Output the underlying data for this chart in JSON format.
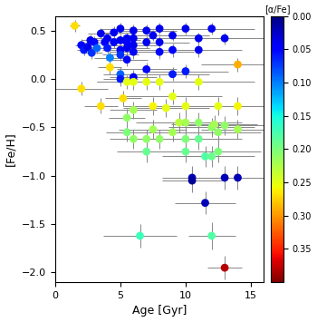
{
  "xlabel": "Age [Gyr]",
  "ylabel": "[Fe/H]",
  "colorbar_label": "[α/Fe]",
  "xlim": [
    0,
    16
  ],
  "ylim": [
    -2.1,
    0.65
  ],
  "cmap": "jet",
  "vmin": 0.0,
  "vmax": 0.4,
  "points": [
    {
      "age": 1.5,
      "feh": 0.55,
      "alpha": 0.27,
      "age_err": 0.4,
      "feh_err": 0.06
    },
    {
      "age": 2.0,
      "feh": 0.35,
      "alpha": 0.05,
      "age_err": 0.5,
      "feh_err": 0.06
    },
    {
      "age": 2.2,
      "feh": 0.3,
      "alpha": 0.06,
      "age_err": 0.5,
      "feh_err": 0.06
    },
    {
      "age": 2.5,
      "feh": 0.33,
      "alpha": 0.04,
      "age_err": 0.6,
      "feh_err": 0.06
    },
    {
      "age": 2.7,
      "feh": 0.4,
      "alpha": 0.04,
      "age_err": 0.7,
      "feh_err": 0.06
    },
    {
      "age": 2.8,
      "feh": 0.27,
      "alpha": 0.07,
      "age_err": 0.8,
      "feh_err": 0.06
    },
    {
      "age": 2.0,
      "feh": -0.1,
      "alpha": 0.27,
      "age_err": 2.0,
      "feh_err": 0.07
    },
    {
      "age": 3.0,
      "feh": 0.38,
      "alpha": 0.05,
      "age_err": 0.9,
      "feh_err": 0.06
    },
    {
      "age": 3.2,
      "feh": 0.32,
      "alpha": 0.09,
      "age_err": 1.0,
      "feh_err": 0.06
    },
    {
      "age": 3.5,
      "feh": 0.47,
      "alpha": 0.04,
      "age_err": 1.0,
      "feh_err": 0.06
    },
    {
      "age": 3.8,
      "feh": 0.38,
      "alpha": 0.05,
      "age_err": 1.0,
      "feh_err": 0.06
    },
    {
      "age": 4.0,
      "feh": 0.42,
      "alpha": 0.04,
      "age_err": 1.2,
      "feh_err": 0.06
    },
    {
      "age": 4.0,
      "feh": 0.32,
      "alpha": 0.06,
      "age_err": 1.1,
      "feh_err": 0.06
    },
    {
      "age": 4.2,
      "feh": 0.22,
      "alpha": 0.1,
      "age_err": 1.2,
      "feh_err": 0.07
    },
    {
      "age": 4.2,
      "feh": 0.12,
      "alpha": 0.27,
      "age_err": 0.9,
      "feh_err": 0.07
    },
    {
      "age": 3.5,
      "feh": -0.28,
      "alpha": 0.27,
      "age_err": 1.3,
      "feh_err": 0.08
    },
    {
      "age": 4.5,
      "feh": 0.48,
      "alpha": 0.04,
      "age_err": 1.3,
      "feh_err": 0.06
    },
    {
      "age": 4.5,
      "feh": 0.38,
      "alpha": 0.05,
      "age_err": 1.3,
      "feh_err": 0.06
    },
    {
      "age": 5.0,
      "feh": 0.52,
      "alpha": 0.04,
      "age_err": 1.5,
      "feh_err": 0.06
    },
    {
      "age": 5.0,
      "feh": 0.4,
      "alpha": 0.04,
      "age_err": 1.5,
      "feh_err": 0.06
    },
    {
      "age": 5.0,
      "feh": 0.3,
      "alpha": 0.05,
      "age_err": 1.4,
      "feh_err": 0.06
    },
    {
      "age": 5.0,
      "feh": 0.25,
      "alpha": 0.07,
      "age_err": 1.4,
      "feh_err": 0.06
    },
    {
      "age": 5.0,
      "feh": 0.05,
      "alpha": 0.09,
      "age_err": 1.3,
      "feh_err": 0.07
    },
    {
      "age": 5.0,
      "feh": 0.0,
      "alpha": 0.06,
      "age_err": 1.3,
      "feh_err": 0.07
    },
    {
      "age": 5.2,
      "feh": -0.2,
      "alpha": 0.27,
      "age_err": 1.4,
      "feh_err": 0.08
    },
    {
      "age": 5.5,
      "feh": 0.42,
      "alpha": 0.04,
      "age_err": 1.6,
      "feh_err": 0.06
    },
    {
      "age": 5.5,
      "feh": 0.38,
      "alpha": 0.05,
      "age_err": 1.6,
      "feh_err": 0.06
    },
    {
      "age": 5.5,
      "feh": 0.32,
      "alpha": 0.04,
      "age_err": 1.7,
      "feh_err": 0.06
    },
    {
      "age": 5.5,
      "feh": 0.2,
      "alpha": 0.05,
      "age_err": 1.6,
      "feh_err": 0.07
    },
    {
      "age": 5.5,
      "feh": -0.03,
      "alpha": 0.25,
      "age_err": 2.3,
      "feh_err": 0.07
    },
    {
      "age": 5.5,
      "feh": -0.4,
      "alpha": 0.21,
      "age_err": 1.4,
      "feh_err": 0.09
    },
    {
      "age": 5.5,
      "feh": -0.55,
      "alpha": 0.2,
      "age_err": 1.6,
      "feh_err": 0.1
    },
    {
      "age": 6.0,
      "feh": 0.5,
      "alpha": 0.04,
      "age_err": 1.8,
      "feh_err": 0.06
    },
    {
      "age": 6.0,
      "feh": 0.42,
      "alpha": 0.04,
      "age_err": 1.8,
      "feh_err": 0.06
    },
    {
      "age": 6.0,
      "feh": 0.35,
      "alpha": 0.04,
      "age_err": 1.8,
      "feh_err": 0.06
    },
    {
      "age": 6.0,
      "feh": 0.28,
      "alpha": 0.05,
      "age_err": 1.8,
      "feh_err": 0.07
    },
    {
      "age": 6.0,
      "feh": 0.02,
      "alpha": 0.04,
      "age_err": 1.8,
      "feh_err": 0.07
    },
    {
      "age": 6.0,
      "feh": -0.03,
      "alpha": 0.25,
      "age_err": 2.8,
      "feh_err": 0.08
    },
    {
      "age": 6.0,
      "feh": -0.32,
      "alpha": 0.22,
      "age_err": 1.8,
      "feh_err": 0.09
    },
    {
      "age": 6.0,
      "feh": -0.62,
      "alpha": 0.21,
      "age_err": 1.8,
      "feh_err": 0.1
    },
    {
      "age": 6.5,
      "feh": -1.62,
      "alpha": 0.17,
      "age_err": 2.8,
      "feh_err": 0.12
    },
    {
      "age": 7.0,
      "feh": 0.5,
      "alpha": 0.04,
      "age_err": 2.3,
      "feh_err": 0.06
    },
    {
      "age": 7.0,
      "feh": 0.38,
      "alpha": 0.04,
      "age_err": 2.3,
      "feh_err": 0.06
    },
    {
      "age": 7.0,
      "feh": 0.1,
      "alpha": 0.05,
      "age_err": 2.3,
      "feh_err": 0.07
    },
    {
      "age": 7.0,
      "feh": -0.03,
      "alpha": 0.25,
      "age_err": 3.3,
      "feh_err": 0.08
    },
    {
      "age": 7.0,
      "feh": -0.62,
      "alpha": 0.21,
      "age_err": 2.3,
      "feh_err": 0.1
    },
    {
      "age": 7.0,
      "feh": -0.75,
      "alpha": 0.19,
      "age_err": 2.3,
      "feh_err": 0.11
    },
    {
      "age": 7.5,
      "feh": 0.45,
      "alpha": 0.04,
      "age_err": 2.3,
      "feh_err": 0.06
    },
    {
      "age": 7.5,
      "feh": -0.28,
      "alpha": 0.26,
      "age_err": 2.3,
      "feh_err": 0.09
    },
    {
      "age": 7.5,
      "feh": -0.52,
      "alpha": 0.22,
      "age_err": 2.6,
      "feh_err": 0.1
    },
    {
      "age": 8.0,
      "feh": 0.52,
      "alpha": 0.04,
      "age_err": 2.6,
      "feh_err": 0.06
    },
    {
      "age": 8.0,
      "feh": 0.38,
      "alpha": 0.04,
      "age_err": 2.3,
      "feh_err": 0.06
    },
    {
      "age": 8.0,
      "feh": 0.28,
      "alpha": 0.05,
      "age_err": 2.6,
      "feh_err": 0.07
    },
    {
      "age": 8.0,
      "feh": -0.03,
      "alpha": 0.25,
      "age_err": 3.3,
      "feh_err": 0.08
    },
    {
      "age": 8.0,
      "feh": -0.62,
      "alpha": 0.21,
      "age_err": 2.8,
      "feh_err": 0.1
    },
    {
      "age": 8.5,
      "feh": -0.3,
      "alpha": 0.25,
      "age_err": 3.3,
      "feh_err": 0.09
    },
    {
      "age": 9.0,
      "feh": 0.45,
      "alpha": 0.04,
      "age_err": 2.8,
      "feh_err": 0.06
    },
    {
      "age": 9.0,
      "feh": 0.3,
      "alpha": 0.05,
      "age_err": 2.8,
      "feh_err": 0.07
    },
    {
      "age": 9.0,
      "feh": 0.05,
      "alpha": 0.06,
      "age_err": 2.8,
      "feh_err": 0.07
    },
    {
      "age": 9.0,
      "feh": -0.18,
      "alpha": 0.25,
      "age_err": 3.8,
      "feh_err": 0.08
    },
    {
      "age": 9.0,
      "feh": -0.55,
      "alpha": 0.22,
      "age_err": 3.3,
      "feh_err": 0.1
    },
    {
      "age": 9.5,
      "feh": -0.45,
      "alpha": 0.23,
      "age_err": 3.3,
      "feh_err": 0.1
    },
    {
      "age": 10.0,
      "feh": 0.52,
      "alpha": 0.04,
      "age_err": 3.3,
      "feh_err": 0.06
    },
    {
      "age": 10.0,
      "feh": 0.08,
      "alpha": 0.06,
      "age_err": 3.3,
      "feh_err": 0.07
    },
    {
      "age": 10.0,
      "feh": -0.28,
      "alpha": 0.25,
      "age_err": 3.8,
      "feh_err": 0.09
    },
    {
      "age": 10.0,
      "feh": -0.45,
      "alpha": 0.22,
      "age_err": 3.3,
      "feh_err": 0.1
    },
    {
      "age": 10.0,
      "feh": -0.62,
      "alpha": 0.2,
      "age_err": 3.3,
      "feh_err": 0.1
    },
    {
      "age": 10.0,
      "feh": -0.75,
      "alpha": 0.19,
      "age_err": 3.3,
      "feh_err": 0.11
    },
    {
      "age": 10.5,
      "feh": -1.02,
      "alpha": 0.02,
      "age_err": 2.3,
      "feh_err": 0.12
    },
    {
      "age": 10.5,
      "feh": -1.05,
      "alpha": 0.01,
      "age_err": 2.3,
      "feh_err": 0.12
    },
    {
      "age": 11.0,
      "feh": 0.42,
      "alpha": 0.04,
      "age_err": 3.3,
      "feh_err": 0.06
    },
    {
      "age": 11.0,
      "feh": 0.3,
      "alpha": 0.04,
      "age_err": 3.3,
      "feh_err": 0.07
    },
    {
      "age": 11.0,
      "feh": -0.03,
      "alpha": 0.25,
      "age_err": 4.3,
      "feh_err": 0.08
    },
    {
      "age": 11.0,
      "feh": -0.45,
      "alpha": 0.21,
      "age_err": 3.3,
      "feh_err": 0.1
    },
    {
      "age": 11.0,
      "feh": -0.62,
      "alpha": 0.19,
      "age_err": 3.3,
      "feh_err": 0.11
    },
    {
      "age": 11.5,
      "feh": -0.8,
      "alpha": 0.18,
      "age_err": 3.3,
      "feh_err": 0.11
    },
    {
      "age": 12.0,
      "feh": 0.52,
      "alpha": 0.04,
      "age_err": 3.3,
      "feh_err": 0.06
    },
    {
      "age": 12.0,
      "feh": -0.5,
      "alpha": 0.21,
      "age_err": 3.3,
      "feh_err": 0.1
    },
    {
      "age": 12.0,
      "feh": -0.8,
      "alpha": 0.19,
      "age_err": 3.3,
      "feh_err": 0.11
    },
    {
      "age": 12.2,
      "feh": -0.47,
      "alpha": 0.22,
      "age_err": 3.3,
      "feh_err": 0.1
    },
    {
      "age": 12.5,
      "feh": -0.28,
      "alpha": 0.25,
      "age_err": 3.3,
      "feh_err": 0.09
    },
    {
      "age": 12.5,
      "feh": -0.55,
      "alpha": 0.21,
      "age_err": 3.3,
      "feh_err": 0.1
    },
    {
      "age": 12.5,
      "feh": -0.75,
      "alpha": 0.2,
      "age_err": 3.3,
      "feh_err": 0.11
    },
    {
      "age": 11.5,
      "feh": -1.28,
      "alpha": 0.02,
      "age_err": 2.3,
      "feh_err": 0.12
    },
    {
      "age": 12.0,
      "feh": -1.62,
      "alpha": 0.18,
      "age_err": 1.8,
      "feh_err": 0.14
    },
    {
      "age": 13.0,
      "feh": 0.42,
      "alpha": 0.04,
      "age_err": 3.3,
      "feh_err": 0.06
    },
    {
      "age": 13.0,
      "feh": -0.48,
      "alpha": 0.21,
      "age_err": 3.3,
      "feh_err": 0.1
    },
    {
      "age": 13.0,
      "feh": -1.02,
      "alpha": 0.02,
      "age_err": 2.8,
      "feh_err": 0.12
    },
    {
      "age": 13.0,
      "feh": -1.95,
      "alpha": 0.38,
      "age_err": 1.3,
      "feh_err": 0.12
    },
    {
      "age": 14.0,
      "feh": 0.15,
      "alpha": 0.29,
      "age_err": 2.8,
      "feh_err": 0.07
    },
    {
      "age": 14.0,
      "feh": -0.28,
      "alpha": 0.26,
      "age_err": 2.8,
      "feh_err": 0.09
    },
    {
      "age": 14.0,
      "feh": -0.52,
      "alpha": 0.22,
      "age_err": 2.8,
      "feh_err": 0.1
    },
    {
      "age": 14.0,
      "feh": -1.02,
      "alpha": 0.02,
      "age_err": 2.8,
      "feh_err": 0.12
    }
  ],
  "marker_size": 40,
  "ecolor": "#888888",
  "elinewidth": 0.7,
  "capsize": 0
}
